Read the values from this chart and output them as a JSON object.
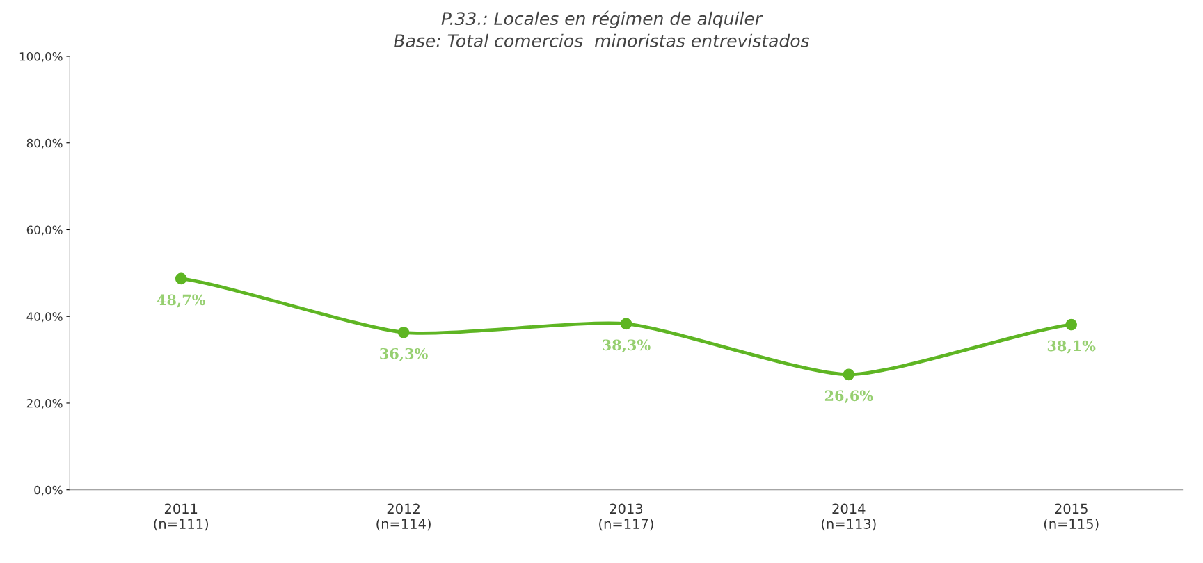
{
  "chart_data": {
    "type": "line",
    "title": "P.33.: Locales en régimen de alquiler",
    "subtitle": "Base: Total comercios  minoristas entrevistados",
    "categories": [
      "2011\n(n=111)",
      "2012\n(n=114)",
      "2013\n(n=117)",
      "2014\n(n=113)",
      "2015\n(n=115)"
    ],
    "series": [
      {
        "color": "#5eb523",
        "values": [
          48.7,
          36.3,
          38.3,
          26.6,
          38.1
        ],
        "value_labels": [
          "48,7%",
          "36,3%",
          "38,3%",
          "26,6%",
          "38,1%"
        ]
      }
    ],
    "ylim": [
      0,
      100
    ],
    "yticks": [
      {
        "value": 0,
        "label": "0,0%"
      },
      {
        "value": 20,
        "label": "20,0%"
      },
      {
        "value": 40,
        "label": "40,0%"
      },
      {
        "value": 60,
        "label": "60,0%"
      },
      {
        "value": 80,
        "label": "80,0%"
      },
      {
        "value": 100,
        "label": "100,0%"
      }
    ],
    "marker": "circle",
    "line_style": "solid",
    "grid": false,
    "legend": false
  }
}
